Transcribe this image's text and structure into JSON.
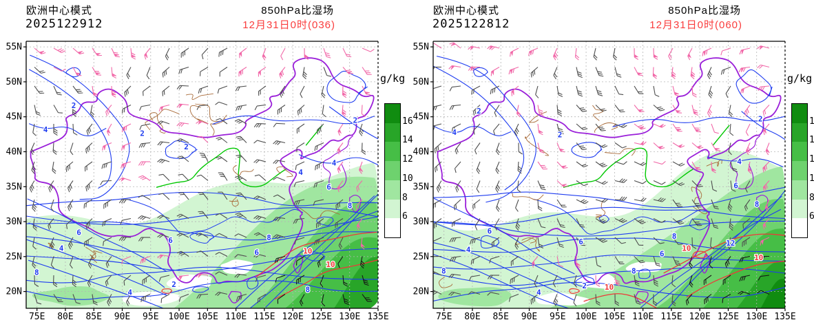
{
  "chart_data": {
    "type": "map-contour",
    "title": "850hPa比湿场",
    "model": "欧洲中心模式",
    "panels": [
      {
        "model": "欧洲中心模式",
        "run": "2025122912",
        "field": "850hPa比湿场",
        "valid_time": "12月31日0时(036)",
        "forecast_hour": "036",
        "contour_labels": {
          "blue": [
            {
              "t": "2",
              "x": 0.135,
              "y": 0.25
            },
            {
              "t": "2",
              "x": 0.33,
              "y": 0.355
            },
            {
              "t": "2",
              "x": 0.455,
              "y": 0.405
            },
            {
              "t": "4",
              "x": 0.055,
              "y": 0.34
            },
            {
              "t": "2",
              "x": 0.935,
              "y": 0.305
            },
            {
              "t": "4",
              "x": 0.875,
              "y": 0.465
            },
            {
              "t": "6",
              "x": 0.15,
              "y": 0.725
            },
            {
              "t": "4",
              "x": 0.1,
              "y": 0.785
            },
            {
              "t": "8",
              "x": 0.03,
              "y": 0.875
            },
            {
              "t": "6",
              "x": 0.41,
              "y": 0.755
            },
            {
              "t": "2",
              "x": 0.42,
              "y": 0.92
            },
            {
              "t": "4",
              "x": 0.295,
              "y": 0.95
            },
            {
              "t": "8",
              "x": 0.69,
              "y": 0.745
            },
            {
              "t": "6",
              "x": 0.655,
              "y": 0.8
            },
            {
              "t": "8",
              "x": 0.92,
              "y": 0.625
            },
            {
              "t": "6",
              "x": 0.86,
              "y": 0.555
            },
            {
              "t": "8",
              "x": 0.8,
              "y": 0.94
            },
            {
              "t": "4",
              "x": 0.78,
              "y": 0.5
            }
          ],
          "red": [
            {
              "t": "10",
              "x": 0.8,
              "y": 0.795
            },
            {
              "t": "10",
              "x": 0.865,
              "y": 0.845
            }
          ]
        }
      },
      {
        "model": "欧洲中心模式",
        "run": "2025122812",
        "field": "850hPa比湿场",
        "valid_time": "12月31日0时(060)",
        "forecast_hour": "060",
        "contour_labels": {
          "blue": [
            {
              "t": "2",
              "x": 0.13,
              "y": 0.27
            },
            {
              "t": "2",
              "x": 0.36,
              "y": 0.36
            },
            {
              "t": "4",
              "x": 0.06,
              "y": 0.35
            },
            {
              "t": "2",
              "x": 0.93,
              "y": 0.3
            },
            {
              "t": "4",
              "x": 0.87,
              "y": 0.46
            },
            {
              "t": "6",
              "x": 0.16,
              "y": 0.72
            },
            {
              "t": "4",
              "x": 0.1,
              "y": 0.79
            },
            {
              "t": "8",
              "x": 0.03,
              "y": 0.87
            },
            {
              "t": "6",
              "x": 0.42,
              "y": 0.76
            },
            {
              "t": "2",
              "x": 0.43,
              "y": 0.925
            },
            {
              "t": "4",
              "x": 0.3,
              "y": 0.95
            },
            {
              "t": "8",
              "x": 0.685,
              "y": 0.74
            },
            {
              "t": "6",
              "x": 0.65,
              "y": 0.805
            },
            {
              "t": "8",
              "x": 0.92,
              "y": 0.62
            },
            {
              "t": "6",
              "x": 0.86,
              "y": 0.55
            },
            {
              "t": "12",
              "x": 0.845,
              "y": 0.765
            },
            {
              "t": "8",
              "x": 0.57,
              "y": 0.87
            }
          ],
          "red": [
            {
              "t": "10",
              "x": 0.72,
              "y": 0.785
            },
            {
              "t": "10",
              "x": 0.925,
              "y": 0.82
            },
            {
              "t": "10",
              "x": 0.5,
              "y": 0.93
            }
          ]
        }
      }
    ],
    "axes": {
      "lon_ticks": [
        "75E",
        "80E",
        "85E",
        "90E",
        "95E",
        "100E",
        "105E",
        "110E",
        "115E",
        "120E",
        "125E",
        "130E",
        "135E"
      ],
      "lat_ticks": [
        "55N",
        "50N",
        "45N",
        "40N",
        "35N",
        "30N",
        "25N",
        "20N"
      ],
      "lon_range": [
        73.1,
        135.0
      ],
      "lat_range": [
        17.6,
        55.8
      ],
      "grid": "dashed"
    },
    "colorbar": {
      "title": "g/kg",
      "tick_labels": [
        "16",
        "14",
        "12",
        "10",
        "8",
        "6"
      ],
      "colors_top_to_bottom": [
        "#108c10",
        "#28a528",
        "#46be46",
        "#6ed26e",
        "#a0e6a0",
        "#d2f5d2",
        "#ffffff"
      ]
    },
    "colors": {
      "valid_time_text": "#fa3c3c",
      "contour_blue": "#1e3cf0",
      "contour_red": "#ee3838",
      "border_purple": "#9a1fd9",
      "province_brown": "#a86a38",
      "river_green": "#00c800",
      "barb_gray": "#4d4d4d",
      "barb_dark": "#161616",
      "barb_pink": "#f168a8",
      "grid_gray": "#b4b4b4"
    }
  }
}
